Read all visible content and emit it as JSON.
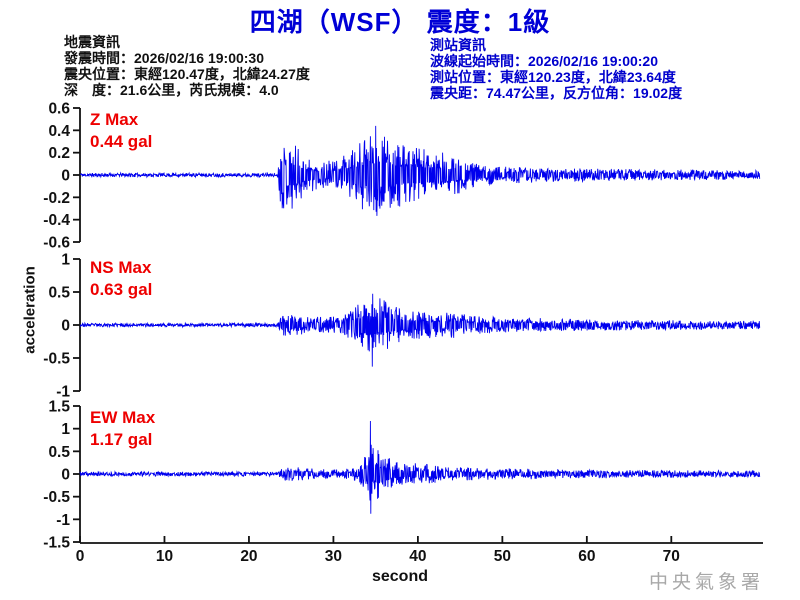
{
  "page": {
    "title": "四湖（WSF） 震度：1級",
    "watermark": "中央氣象署"
  },
  "quake_info": {
    "header": "地震資訊",
    "lines": [
      "發震時間：2026/02/16 19:00:30",
      "震央位置：東經120.47度，北緯24.27度",
      "深　度：21.6公里，芮氏規模：4.0"
    ]
  },
  "station_info": {
    "header": "測站資訊",
    "lines": [
      "波線起始時間：2026/02/16 19:00:20",
      "測站位置：東經120.23度，北緯23.64度",
      "震央距：74.47公里，反方位角：19.02度"
    ]
  },
  "chart_data": {
    "type": "line",
    "title": "四湖（WSF） 震度：1級",
    "xlabel": "second",
    "ylabel": "acceleration",
    "x_range_s": [
      0,
      80.5
    ],
    "x_ticks": [
      "0",
      "10",
      "20",
      "30",
      "40",
      "50",
      "60",
      "70"
    ],
    "grid": false,
    "trace_color": "#0000ee",
    "axis_color": "#111111",
    "p_arrival_s": 24.0,
    "s_peak_s": 34.5,
    "components": [
      {
        "id": "Z",
        "label_line1": "Z Max",
        "label_line2": "0.44 gal",
        "max_gal": 0.44,
        "ylim": [
          -0.6,
          0.6
        ],
        "y_ticks": [
          "0.6",
          "0.4",
          "0.2",
          "0",
          "-0.2",
          "-0.4",
          "-0.6"
        ],
        "peak": {
          "t": 35.0,
          "gal": 0.44
        },
        "envelope": [
          [
            0,
            0.018
          ],
          [
            23.4,
            0.018
          ],
          [
            23.8,
            0.3
          ],
          [
            25,
            0.33
          ],
          [
            26.5,
            0.2
          ],
          [
            28,
            0.13
          ],
          [
            30,
            0.13
          ],
          [
            32,
            0.2
          ],
          [
            34,
            0.36
          ],
          [
            35.5,
            0.38
          ],
          [
            37,
            0.3
          ],
          [
            39,
            0.26
          ],
          [
            41,
            0.24
          ],
          [
            43,
            0.2
          ],
          [
            45,
            0.17
          ],
          [
            46.5,
            0.11
          ],
          [
            49,
            0.08
          ],
          [
            53,
            0.07
          ],
          [
            58,
            0.06
          ],
          [
            64,
            0.055
          ],
          [
            70,
            0.05
          ],
          [
            80.5,
            0.04
          ]
        ],
        "seed": 11
      },
      {
        "id": "NS",
        "label_line1": "NS Max",
        "label_line2": "0.63 gal",
        "max_gal": 0.63,
        "ylim": [
          -1,
          1
        ],
        "y_ticks": [
          "1",
          "0.5",
          "0",
          "-0.5",
          "-1"
        ],
        "peak": {
          "t": 34.6,
          "gal": -0.63
        },
        "envelope": [
          [
            0,
            0.028
          ],
          [
            23.4,
            0.028
          ],
          [
            24,
            0.16
          ],
          [
            25,
            0.18
          ],
          [
            27,
            0.12
          ],
          [
            29,
            0.13
          ],
          [
            31,
            0.13
          ],
          [
            32.8,
            0.3
          ],
          [
            34,
            0.48
          ],
          [
            35,
            0.44
          ],
          [
            36.5,
            0.36
          ],
          [
            38,
            0.28
          ],
          [
            40,
            0.22
          ],
          [
            42,
            0.19
          ],
          [
            44,
            0.21
          ],
          [
            46,
            0.15
          ],
          [
            48,
            0.13
          ],
          [
            52,
            0.11
          ],
          [
            56,
            0.1
          ],
          [
            60,
            0.09
          ],
          [
            65,
            0.08
          ],
          [
            72,
            0.07
          ],
          [
            80.5,
            0.06
          ]
        ],
        "seed": 23
      },
      {
        "id": "EW",
        "label_line1": "EW Max",
        "label_line2": "1.17 gal",
        "max_gal": 1.17,
        "ylim": [
          -1.5,
          1.5
        ],
        "y_ticks": [
          "1.5",
          "1",
          "0.5",
          "0",
          "-0.5",
          "-1",
          "-1.5"
        ],
        "peak": {
          "t": 34.4,
          "gal": 1.17
        },
        "envelope": [
          [
            0,
            0.05
          ],
          [
            23.4,
            0.05
          ],
          [
            24,
            0.14
          ],
          [
            25.5,
            0.16
          ],
          [
            28,
            0.11
          ],
          [
            31,
            0.1
          ],
          [
            33,
            0.16
          ],
          [
            34.2,
            0.55
          ],
          [
            35,
            0.6
          ],
          [
            36,
            0.45
          ],
          [
            37,
            0.3
          ],
          [
            38.5,
            0.22
          ],
          [
            40,
            0.24
          ],
          [
            42,
            0.2
          ],
          [
            44,
            0.17
          ],
          [
            46,
            0.14
          ],
          [
            48,
            0.13
          ],
          [
            52,
            0.12
          ],
          [
            56,
            0.11
          ],
          [
            60,
            0.1
          ],
          [
            65,
            0.09
          ],
          [
            72,
            0.08
          ],
          [
            80.5,
            0.07
          ]
        ],
        "seed": 37
      }
    ]
  }
}
